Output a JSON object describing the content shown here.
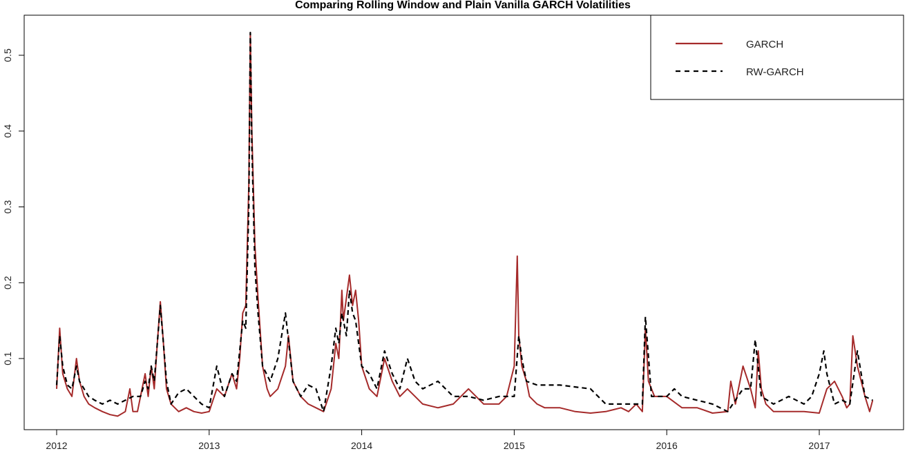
{
  "chart_data": {
    "type": "line",
    "title": "Comparing Rolling Window and Plain Vanilla GARCH Volatilities",
    "xlabel": "",
    "ylabel": "",
    "xlim": [
      2012.0,
      2017.55
    ],
    "ylim": [
      0.0,
      0.54
    ],
    "x_ticks": [
      {
        "value": 2012,
        "label": "2012"
      },
      {
        "value": 2013,
        "label": "2013"
      },
      {
        "value": 2014,
        "label": "2014"
      },
      {
        "value": 2015,
        "label": "2015"
      },
      {
        "value": 2016,
        "label": "2016"
      },
      {
        "value": 2017,
        "label": "2017"
      }
    ],
    "y_ticks": [
      {
        "value": 0.1,
        "label": "0.1"
      },
      {
        "value": 0.2,
        "label": "0.2"
      },
      {
        "value": 0.3,
        "label": "0.3"
      },
      {
        "value": 0.4,
        "label": "0.4"
      },
      {
        "value": 0.5,
        "label": "0.5"
      }
    ],
    "grid": false,
    "legend_position": "top-right",
    "series": [
      {
        "name": "GARCH",
        "color": "#a52a2a",
        "style": "solid",
        "x": [
          2012.0,
          2012.02,
          2012.04,
          2012.07,
          2012.1,
          2012.13,
          2012.15,
          2012.18,
          2012.21,
          2012.25,
          2012.3,
          2012.35,
          2012.4,
          2012.45,
          2012.48,
          2012.5,
          2012.53,
          2012.55,
          2012.58,
          2012.6,
          2012.62,
          2012.64,
          2012.66,
          2012.68,
          2012.7,
          2012.72,
          2012.75,
          2012.8,
          2012.85,
          2012.9,
          2012.95,
          2013.0,
          2013.05,
          2013.1,
          2013.15,
          2013.18,
          2013.2,
          2013.22,
          2013.24,
          2013.26,
          2013.27,
          2013.28,
          2013.3,
          2013.32,
          2013.35,
          2013.38,
          2013.4,
          2013.45,
          2013.5,
          2013.52,
          2013.55,
          2013.6,
          2013.65,
          2013.7,
          2013.75,
          2013.8,
          2013.83,
          2013.85,
          2013.87,
          2013.88,
          2013.9,
          2013.92,
          2013.94,
          2013.96,
          2013.98,
          2014.0,
          2014.05,
          2014.1,
          2014.15,
          2014.2,
          2014.25,
          2014.3,
          2014.35,
          2014.4,
          2014.5,
          2014.6,
          2014.7,
          2014.8,
          2014.9,
          2014.95,
          2015.0,
          2015.02,
          2015.03,
          2015.05,
          2015.08,
          2015.1,
          2015.15,
          2015.2,
          2015.3,
          2015.4,
          2015.5,
          2015.6,
          2015.7,
          2015.75,
          2015.8,
          2015.84,
          2015.86,
          2015.88,
          2015.92,
          2016.0,
          2016.1,
          2016.2,
          2016.3,
          2016.4,
          2016.42,
          2016.45,
          2016.5,
          2016.55,
          2016.58,
          2016.6,
          2016.62,
          2016.65,
          2016.7,
          2016.8,
          2016.9,
          2017.0,
          2017.05,
          2017.1,
          2017.15,
          2017.18,
          2017.2,
          2017.22,
          2017.25,
          2017.3,
          2017.33,
          2017.35
        ],
        "y": [
          0.06,
          0.14,
          0.08,
          0.06,
          0.05,
          0.1,
          0.07,
          0.05,
          0.04,
          0.035,
          0.03,
          0.026,
          0.024,
          0.03,
          0.06,
          0.03,
          0.03,
          0.05,
          0.08,
          0.05,
          0.09,
          0.06,
          0.12,
          0.175,
          0.12,
          0.06,
          0.04,
          0.03,
          0.035,
          0.03,
          0.028,
          0.03,
          0.06,
          0.05,
          0.08,
          0.06,
          0.1,
          0.16,
          0.17,
          0.33,
          0.53,
          0.4,
          0.25,
          0.18,
          0.09,
          0.06,
          0.05,
          0.06,
          0.09,
          0.13,
          0.07,
          0.05,
          0.04,
          0.035,
          0.03,
          0.06,
          0.12,
          0.1,
          0.19,
          0.15,
          0.18,
          0.21,
          0.17,
          0.19,
          0.15,
          0.09,
          0.06,
          0.05,
          0.1,
          0.07,
          0.05,
          0.06,
          0.05,
          0.04,
          0.035,
          0.04,
          0.06,
          0.04,
          0.04,
          0.05,
          0.09,
          0.235,
          0.13,
          0.09,
          0.07,
          0.05,
          0.04,
          0.035,
          0.035,
          0.03,
          0.028,
          0.03,
          0.035,
          0.03,
          0.04,
          0.03,
          0.14,
          0.07,
          0.05,
          0.05,
          0.035,
          0.035,
          0.028,
          0.03,
          0.07,
          0.04,
          0.09,
          0.06,
          0.035,
          0.11,
          0.06,
          0.04,
          0.03,
          0.03,
          0.03,
          0.028,
          0.06,
          0.07,
          0.05,
          0.035,
          0.04,
          0.13,
          0.09,
          0.05,
          0.03,
          0.045
        ]
      },
      {
        "name": "RW-GARCH",
        "color": "#000000",
        "style": "dashed",
        "x": [
          2012.0,
          2012.02,
          2012.04,
          2012.07,
          2012.1,
          2012.13,
          2012.15,
          2012.18,
          2012.21,
          2012.25,
          2012.3,
          2012.35,
          2012.4,
          2012.45,
          2012.5,
          2012.55,
          2012.58,
          2012.6,
          2012.62,
          2012.64,
          2012.66,
          2012.68,
          2012.7,
          2012.72,
          2012.75,
          2012.8,
          2012.85,
          2012.9,
          2012.95,
          2013.0,
          2013.05,
          2013.1,
          2013.15,
          2013.18,
          2013.2,
          2013.22,
          2013.24,
          2013.26,
          2013.27,
          2013.28,
          2013.3,
          2013.32,
          2013.35,
          2013.4,
          2013.45,
          2013.5,
          2013.55,
          2013.6,
          2013.65,
          2013.7,
          2013.75,
          2013.8,
          2013.83,
          2013.85,
          2013.87,
          2013.9,
          2013.92,
          2013.94,
          2013.96,
          2014.0,
          2014.05,
          2014.1,
          2014.15,
          2014.2,
          2014.25,
          2014.3,
          2014.35,
          2014.4,
          2014.5,
          2014.6,
          2014.7,
          2014.8,
          2014.9,
          2015.0,
          2015.03,
          2015.05,
          2015.08,
          2015.15,
          2015.3,
          2015.5,
          2015.6,
          2015.7,
          2015.8,
          2015.84,
          2015.86,
          2015.9,
          2016.0,
          2016.05,
          2016.1,
          2016.2,
          2016.3,
          2016.4,
          2016.5,
          2016.55,
          2016.58,
          2016.62,
          2016.7,
          2016.8,
          2016.9,
          2016.95,
          2017.0,
          2017.03,
          2017.05,
          2017.1,
          2017.15,
          2017.2,
          2017.25,
          2017.3,
          2017.35
        ],
        "y": [
          0.065,
          0.13,
          0.09,
          0.065,
          0.06,
          0.09,
          0.07,
          0.06,
          0.05,
          0.045,
          0.04,
          0.045,
          0.04,
          0.045,
          0.05,
          0.05,
          0.07,
          0.06,
          0.09,
          0.07,
          0.12,
          0.17,
          0.12,
          0.07,
          0.04,
          0.055,
          0.06,
          0.05,
          0.04,
          0.035,
          0.09,
          0.05,
          0.08,
          0.07,
          0.11,
          0.15,
          0.14,
          0.3,
          0.53,
          0.38,
          0.22,
          0.16,
          0.09,
          0.07,
          0.1,
          0.16,
          0.07,
          0.05,
          0.065,
          0.06,
          0.03,
          0.09,
          0.14,
          0.12,
          0.16,
          0.13,
          0.19,
          0.16,
          0.15,
          0.09,
          0.08,
          0.06,
          0.11,
          0.08,
          0.06,
          0.1,
          0.07,
          0.06,
          0.07,
          0.05,
          0.05,
          0.045,
          0.05,
          0.05,
          0.13,
          0.1,
          0.07,
          0.065,
          0.065,
          0.06,
          0.04,
          0.04,
          0.04,
          0.04,
          0.155,
          0.05,
          0.05,
          0.06,
          0.05,
          0.045,
          0.04,
          0.03,
          0.06,
          0.06,
          0.125,
          0.05,
          0.04,
          0.05,
          0.04,
          0.05,
          0.08,
          0.11,
          0.08,
          0.04,
          0.045,
          0.04,
          0.11,
          0.05,
          0.045
        ]
      }
    ]
  }
}
